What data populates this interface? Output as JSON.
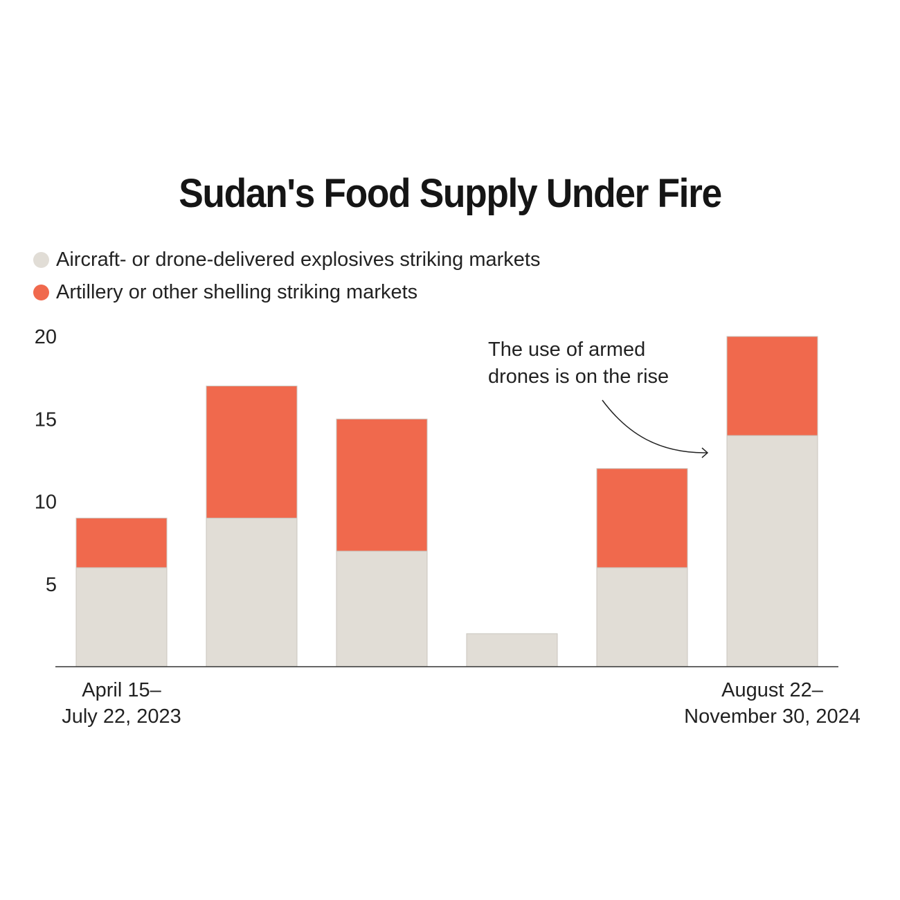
{
  "colors": {
    "air": "#e1ddd6",
    "artillery": "#f0694d",
    "bar_stroke": "#c9c5be",
    "axis": "#333333"
  },
  "chart_data": {
    "type": "bar",
    "stacked": true,
    "title": "Sudan's Food Supply Under Fire",
    "legend": [
      "Aircraft- or drone-delivered explosives striking markets",
      "Artillery or other shelling striking markets"
    ],
    "categories": [
      "April 15–\nJuly 22, 2023",
      "",
      "",
      "",
      "",
      "August 22–\nNovember 30, 2024"
    ],
    "x_labels_shown": [
      {
        "index": 0,
        "lines": [
          "April 15–",
          "July 22, 2023"
        ]
      },
      {
        "index": 5,
        "lines": [
          "August 22–",
          "November 30, 2024"
        ]
      }
    ],
    "series": [
      {
        "name": "Aircraft- or drone-delivered explosives striking markets",
        "values": [
          6,
          9,
          7,
          2,
          6,
          14
        ]
      },
      {
        "name": "Artillery or other shelling striking markets",
        "values": [
          3,
          8,
          8,
          0,
          6,
          6
        ]
      }
    ],
    "yticks": [
      5,
      10,
      15,
      20
    ],
    "ylim": [
      0,
      20
    ],
    "grid": false,
    "legend_position": "top-left",
    "annotation": {
      "lines": [
        "The use of armed",
        "drones is on the rise"
      ],
      "target_index": 5
    }
  }
}
